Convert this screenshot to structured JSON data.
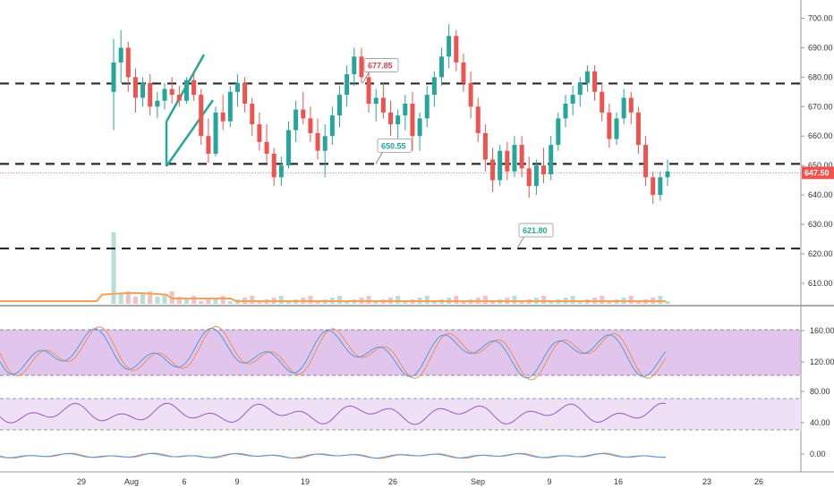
{
  "chart_data": {
    "type": "candlestick",
    "price_axis": {
      "ticks": [
        "700.00",
        "690.00",
        "680.00",
        "670.00",
        "660.00",
        "650.00",
        "640.00",
        "630.00",
        "620.00",
        "610.00"
      ],
      "range": [
        603,
        705
      ]
    },
    "last_price": {
      "value": 647.5,
      "label": "647.50",
      "color": "#ef5350"
    },
    "levels": [
      {
        "value": 677.85,
        "label": "677.85",
        "color": "#e0404a"
      },
      {
        "value": 650.55,
        "label": "650.55",
        "color": "#26a69a"
      },
      {
        "value": 621.8,
        "label": "621.80",
        "color": "#26a69a"
      }
    ],
    "date_axis": {
      "ticks": [
        "29",
        "Aug",
        "6",
        "9",
        "19",
        "26",
        "Sep",
        "9",
        "16",
        "23",
        "26"
      ]
    },
    "candles": [
      [
        675,
        693,
        662,
        685
      ],
      [
        685,
        696,
        678,
        690
      ],
      [
        690,
        692,
        675,
        680
      ],
      [
        680,
        683,
        668,
        673
      ],
      [
        673,
        680,
        670,
        678
      ],
      [
        678,
        681,
        667,
        670
      ],
      [
        670,
        675,
        666,
        672
      ],
      [
        672,
        678,
        669,
        676
      ],
      [
        676,
        680,
        671,
        674
      ],
      [
        674,
        677,
        670,
        672
      ],
      [
        672,
        680,
        671,
        679
      ],
      [
        679,
        682,
        672,
        674
      ],
      [
        674,
        676,
        657,
        660
      ],
      [
        660,
        666,
        651,
        654
      ],
      [
        654,
        670,
        653,
        668
      ],
      [
        668,
        674,
        662,
        665
      ],
      [
        665,
        677,
        663,
        675
      ],
      [
        675,
        681,
        670,
        678
      ],
      [
        678,
        680,
        668,
        671
      ],
      [
        671,
        673,
        660,
        664
      ],
      [
        664,
        668,
        655,
        658
      ],
      [
        658,
        664,
        651,
        654
      ],
      [
        654,
        656,
        643,
        646
      ],
      [
        646,
        653,
        643,
        650
      ],
      [
        650,
        665,
        649,
        662
      ],
      [
        662,
        672,
        658,
        669
      ],
      [
        669,
        675,
        664,
        666
      ],
      [
        666,
        670,
        658,
        661
      ],
      [
        661,
        666,
        652,
        655
      ],
      [
        655,
        664,
        646,
        660
      ],
      [
        660,
        670,
        657,
        667
      ],
      [
        667,
        677,
        663,
        674
      ],
      [
        674,
        684,
        670,
        681
      ],
      [
        681,
        690,
        677,
        687
      ],
      [
        687,
        690,
        678,
        680
      ],
      [
        680,
        682,
        668,
        671
      ],
      [
        671,
        676,
        665,
        673
      ],
      [
        673,
        678,
        666,
        668
      ],
      [
        668,
        672,
        660,
        664
      ],
      [
        664,
        669,
        659,
        667
      ],
      [
        667,
        674,
        662,
        671
      ],
      [
        671,
        675,
        655,
        660
      ],
      [
        660,
        668,
        655,
        666
      ],
      [
        666,
        677,
        663,
        674
      ],
      [
        674,
        682,
        670,
        680
      ],
      [
        680,
        690,
        677,
        687
      ],
      [
        687,
        698,
        683,
        694
      ],
      [
        694,
        696,
        682,
        685
      ],
      [
        685,
        688,
        675,
        678
      ],
      [
        678,
        682,
        666,
        670
      ],
      [
        670,
        673,
        658,
        661
      ],
      [
        661,
        664,
        648,
        652
      ],
      [
        652,
        656,
        641,
        645
      ],
      [
        645,
        657,
        643,
        655
      ],
      [
        655,
        658,
        645,
        648
      ],
      [
        648,
        660,
        646,
        657
      ],
      [
        657,
        660,
        646,
        649
      ],
      [
        649,
        653,
        639,
        643
      ],
      [
        643,
        652,
        640,
        650
      ],
      [
        650,
        656,
        644,
        647
      ],
      [
        647,
        660,
        645,
        657
      ],
      [
        657,
        668,
        655,
        666
      ],
      [
        666,
        674,
        663,
        671
      ],
      [
        671,
        677,
        667,
        674
      ],
      [
        674,
        680,
        670,
        678
      ],
      [
        678,
        684,
        675,
        682
      ],
      [
        682,
        684,
        672,
        675
      ],
      [
        675,
        678,
        665,
        668
      ],
      [
        668,
        671,
        656,
        659
      ],
      [
        659,
        668,
        657,
        666
      ],
      [
        666,
        676,
        664,
        673
      ],
      [
        673,
        675,
        664,
        668
      ],
      [
        668,
        670,
        654,
        657
      ],
      [
        657,
        660,
        643,
        646
      ],
      [
        646,
        648,
        637,
        640
      ],
      [
        640,
        648,
        638,
        646
      ],
      [
        646,
        652,
        643,
        648
      ]
    ],
    "panels": [
      {
        "name": "stochastic-rsi",
        "ticks": [
          "160.00",
          "120.00",
          "80.00",
          "40.00",
          "0.00"
        ],
        "band": [
          100,
          160
        ]
      },
      {
        "name": "rsi",
        "band": [
          30,
          70
        ]
      },
      {
        "name": "macd"
      }
    ],
    "colors": {
      "up": "#26a69a",
      "down": "#ef5350",
      "level": "#2b2b2b",
      "volume_ma": "#f5a15a",
      "band": "#cf9ee0",
      "trendline": "#26a69a"
    }
  }
}
